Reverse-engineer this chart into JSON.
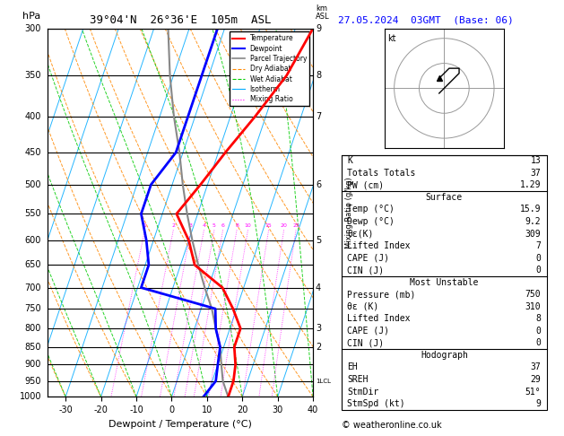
{
  "title_left": "39°04'N  26°36'E  105m  ASL",
  "title_right": "27.05.2024  03GMT  (Base: 06)",
  "xlabel": "Dewpoint / Temperature (°C)",
  "pressure_levels": [
    300,
    350,
    400,
    450,
    500,
    550,
    600,
    650,
    700,
    750,
    800,
    850,
    900,
    950,
    1000
  ],
  "pressure_min": 300,
  "pressure_max": 1000,
  "temp_min": -35,
  "temp_max": 40,
  "skew_factor": 35,
  "temp_profile_pressure": [
    300,
    350,
    400,
    450,
    500,
    550,
    600,
    650,
    700,
    750,
    800,
    850,
    900,
    950,
    1000
  ],
  "temp_profile_temp": [
    5,
    2,
    -3,
    -8,
    -12,
    -16,
    -10,
    -6,
    4,
    9,
    13,
    13,
    15,
    16,
    16
  ],
  "dewp_profile_pressure": [
    300,
    350,
    400,
    450,
    500,
    550,
    600,
    650,
    700,
    750,
    800,
    850,
    900,
    950,
    1000
  ],
  "dewp_profile_temp": [
    -22,
    -22,
    -22,
    -22,
    -26,
    -26,
    -22,
    -19,
    -19,
    4,
    6,
    9,
    10,
    11,
    9
  ],
  "parcel_profile_pressure": [
    1000,
    950,
    900,
    850,
    800,
    750,
    700,
    650,
    600,
    550,
    500,
    450,
    400,
    350,
    300
  ],
  "parcel_profile_temp": [
    16,
    13,
    11,
    9,
    6,
    3,
    -1,
    -5,
    -9,
    -13,
    -17,
    -21,
    -26,
    -31,
    -36
  ],
  "bg_color": "#ffffff",
  "isotherm_color": "#00aaff",
  "dry_adiabat_color": "#ff8800",
  "wet_adiabat_color": "#00cc00",
  "mixing_ratio_color": "#ff00ff",
  "temp_color": "#ff0000",
  "dewp_color": "#0000ff",
  "parcel_color": "#888888",
  "km_labels_pressure": [
    300,
    350,
    400,
    500,
    600,
    700,
    800,
    850,
    950
  ],
  "km_labels_text": [
    "9",
    "8",
    "7",
    "6",
    "5",
    "4",
    "3",
    "2",
    "1LCL"
  ],
  "mixing_ratio_values": [
    1,
    2,
    3,
    4,
    5,
    6,
    8,
    10,
    15,
    20,
    25
  ],
  "copyright": "© weatheronline.co.uk"
}
